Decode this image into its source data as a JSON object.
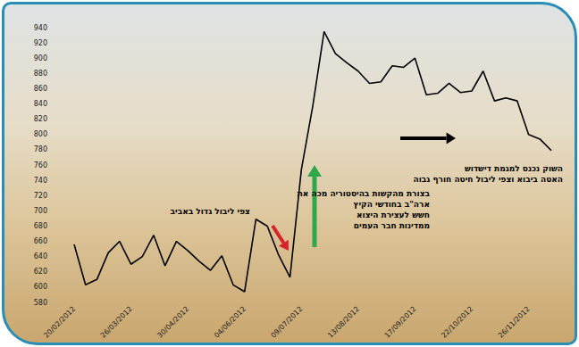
{
  "chart_data": {
    "type": "line",
    "categories": [
      "20/02/2012",
      null,
      null,
      null,
      null,
      "26/03/2012",
      null,
      null,
      null,
      null,
      "30/04/2012",
      null,
      null,
      null,
      null,
      "04/06/2012",
      null,
      null,
      null,
      null,
      "09/07/2012",
      null,
      null,
      null,
      null,
      "13/08/2012",
      null,
      null,
      null,
      null,
      "17/09/2012",
      null,
      null,
      null,
      null,
      "22/10/2012",
      null,
      null,
      null,
      null,
      "26/11/2012",
      null,
      null
    ],
    "values": [
      656,
      603,
      610,
      645,
      660,
      630,
      640,
      668,
      628,
      660,
      648,
      634,
      622,
      641,
      603,
      594,
      689,
      680,
      642,
      613,
      754,
      837,
      935,
      906,
      894,
      883,
      867,
      869,
      890,
      888,
      900,
      852,
      854,
      867,
      855,
      857,
      883,
      844,
      848,
      844,
      800,
      794,
      779
    ],
    "color": "#000000",
    "ylim": [
      580,
      940
    ],
    "yticks": [
      580,
      600,
      620,
      640,
      660,
      680,
      700,
      720,
      740,
      760,
      780,
      800,
      820,
      840,
      860,
      880,
      900,
      920,
      940
    ],
    "grid": false,
    "annotations": [
      {
        "lines": [
          "צפי ליבול גדול באביב"
        ]
      },
      {
        "lines": [
          "בצורת מהקשות בהיסטוריה מכה את",
          "ארה\"ב בחודשי הקיץ",
          "חשש לעצירת היצוא",
          "ממדינות חבר העמים"
        ]
      },
      {
        "lines": [
          "השוק נכנס למגמת דישדוש",
          "האטה ביבוא וצפי ליבול חיטה חורף גבוה"
        ]
      }
    ]
  }
}
